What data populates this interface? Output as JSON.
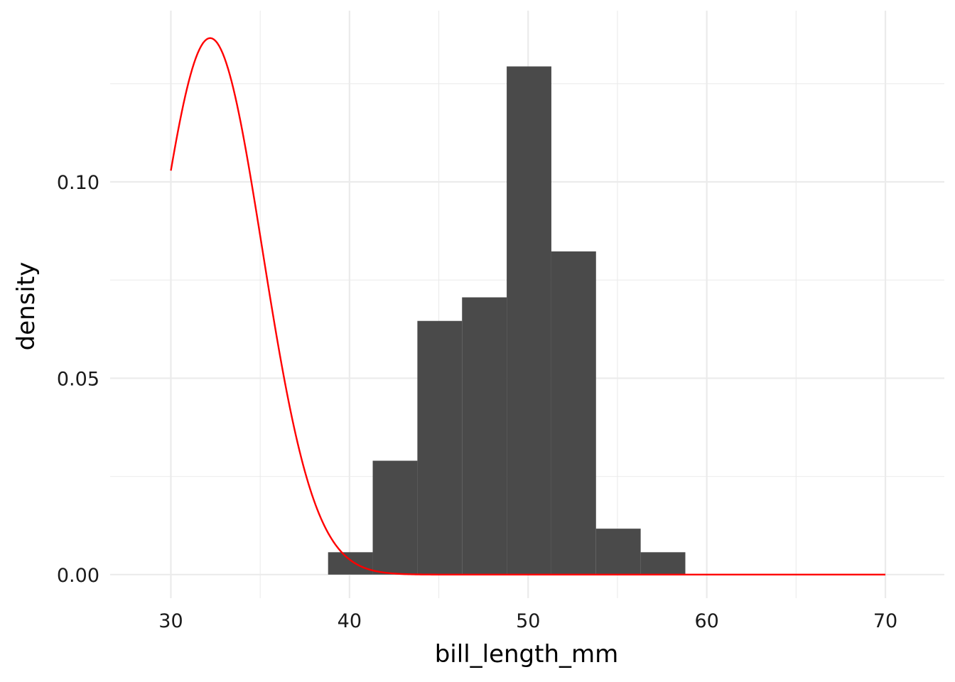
{
  "chart_data": {
    "type": "bar",
    "xlabel": "bill_length_mm",
    "ylabel": "density",
    "xlim": [
      26.6,
      73.3
    ],
    "ylim": [
      -0.006,
      0.1436
    ],
    "x_ticks": [
      30,
      40,
      50,
      60,
      70
    ],
    "x_tick_labels": [
      "30",
      "40",
      "50",
      "60",
      "70"
    ],
    "x_minor_ticks": [
      35,
      45,
      55,
      65
    ],
    "y_ticks": [
      0.0,
      0.05,
      0.1
    ],
    "y_tick_labels": [
      "0.00",
      "0.05",
      "0.10"
    ],
    "y_minor_ticks": [
      0.025,
      0.075,
      0.125
    ],
    "grid": true,
    "series": [
      {
        "type": "histogram",
        "bins": [
          {
            "x0": 38.8,
            "x1": 41.3,
            "density": 0.0057
          },
          {
            "x0": 41.3,
            "x1": 43.8,
            "density": 0.029
          },
          {
            "x0": 43.8,
            "x1": 46.3,
            "density": 0.0646
          },
          {
            "x0": 46.3,
            "x1": 48.8,
            "density": 0.0706
          },
          {
            "x0": 48.8,
            "x1": 51.3,
            "density": 0.1294
          },
          {
            "x0": 51.3,
            "x1": 53.8,
            "density": 0.0823
          },
          {
            "x0": 53.8,
            "x1": 56.3,
            "density": 0.0117
          },
          {
            "x0": 56.3,
            "x1": 58.8,
            "density": 0.0057
          }
        ]
      },
      {
        "type": "line",
        "curve": "normal density",
        "mean": 32.2,
        "sd": 2.92,
        "x_range": [
          30,
          70
        ]
      }
    ],
    "colors": {
      "bars": "#4a4a4a",
      "curve": "#ff0000",
      "grid": "#ebebeb"
    }
  }
}
